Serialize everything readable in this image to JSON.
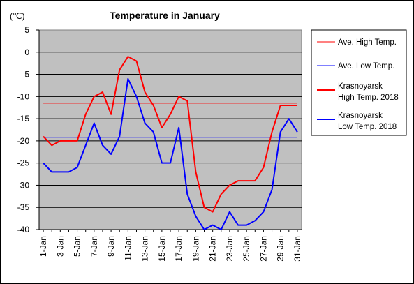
{
  "chart_data": {
    "type": "line",
    "title": "Temperature in January",
    "unit_label": "(℃)",
    "ylim": [
      -40,
      5
    ],
    "yticks": [
      5,
      0,
      -5,
      -10,
      -15,
      -20,
      -25,
      -30,
      -35,
      -40
    ],
    "x": [
      1,
      2,
      3,
      4,
      5,
      6,
      7,
      8,
      9,
      10,
      11,
      12,
      13,
      14,
      15,
      16,
      17,
      18,
      19,
      20,
      21,
      22,
      23,
      24,
      25,
      26,
      27,
      28,
      29,
      30,
      31
    ],
    "xtick_labels": [
      "1-Jan",
      "3-Jan",
      "5-Jan",
      "7-Jan",
      "9-Jan",
      "11-Jan",
      "13-Jan",
      "15-Jan",
      "17-Jan",
      "19-Jan",
      "21-Jan",
      "23-Jan",
      "25-Jan",
      "27-Jan",
      "29-Jan",
      "31-Jan"
    ],
    "xtick_days": [
      1,
      3,
      5,
      7,
      9,
      11,
      13,
      15,
      17,
      19,
      21,
      23,
      25,
      27,
      29,
      31
    ],
    "background": "#c0c0c0",
    "grid": "horizontal",
    "legend_placement": "right",
    "series": [
      {
        "name": "Ave. High Temp.",
        "color": "#ff0000",
        "width": 1,
        "values": [
          -11.5,
          -11.5,
          -11.5,
          -11.5,
          -11.5,
          -11.5,
          -11.5,
          -11.5,
          -11.5,
          -11.5,
          -11.5,
          -11.5,
          -11.5,
          -11.5,
          -11.5,
          -11.5,
          -11.5,
          -11.5,
          -11.5,
          -11.5,
          -11.5,
          -11.5,
          -11.5,
          -11.5,
          -11.5,
          -11.5,
          -11.5,
          -11.5,
          -11.5,
          -11.5,
          -11.5
        ]
      },
      {
        "name": "Ave. Low Temp.",
        "color": "#0000ff",
        "width": 1,
        "values": [
          -19.2,
          -19.2,
          -19.2,
          -19.2,
          -19.2,
          -19.2,
          -19.2,
          -19.2,
          -19.2,
          -19.2,
          -19.2,
          -19.2,
          -19.2,
          -19.2,
          -19.2,
          -19.2,
          -19.2,
          -19.2,
          -19.2,
          -19.2,
          -19.2,
          -19.2,
          -19.2,
          -19.2,
          -19.2,
          -19.2,
          -19.2,
          -19.2,
          -19.2,
          -19.2,
          -19.2
        ]
      },
      {
        "name": "Krasnoyarsk High Temp. 2018",
        "name_lines": [
          "Krasnoyarsk",
          "High Temp. 2018"
        ],
        "color": "#ff0000",
        "width": 2,
        "values": [
          -19,
          -21,
          -20,
          -20,
          -20,
          -14,
          -10,
          -9,
          -14,
          -4,
          -1,
          -2,
          -9,
          -12,
          -17,
          -14,
          -10,
          -11,
          -27,
          -35,
          -36,
          -32,
          -30,
          -29,
          -29,
          -29,
          -26,
          -18,
          -12,
          -12,
          -12
        ]
      },
      {
        "name": "Krasnoyarsk Low Temp. 2018",
        "name_lines": [
          "Krasnoyarsk",
          "Low Temp. 2018"
        ],
        "color": "#0000ff",
        "width": 2,
        "values": [
          -25,
          -27,
          -27,
          -27,
          -26,
          -21,
          -16,
          -21,
          -23,
          -19,
          -6,
          -10,
          -16,
          -18,
          -25,
          -25,
          -17,
          -32,
          -37,
          -40,
          -39,
          -40,
          -36,
          -39,
          -39,
          -38,
          -36,
          -31,
          -18,
          -15,
          -18
        ]
      }
    ]
  }
}
